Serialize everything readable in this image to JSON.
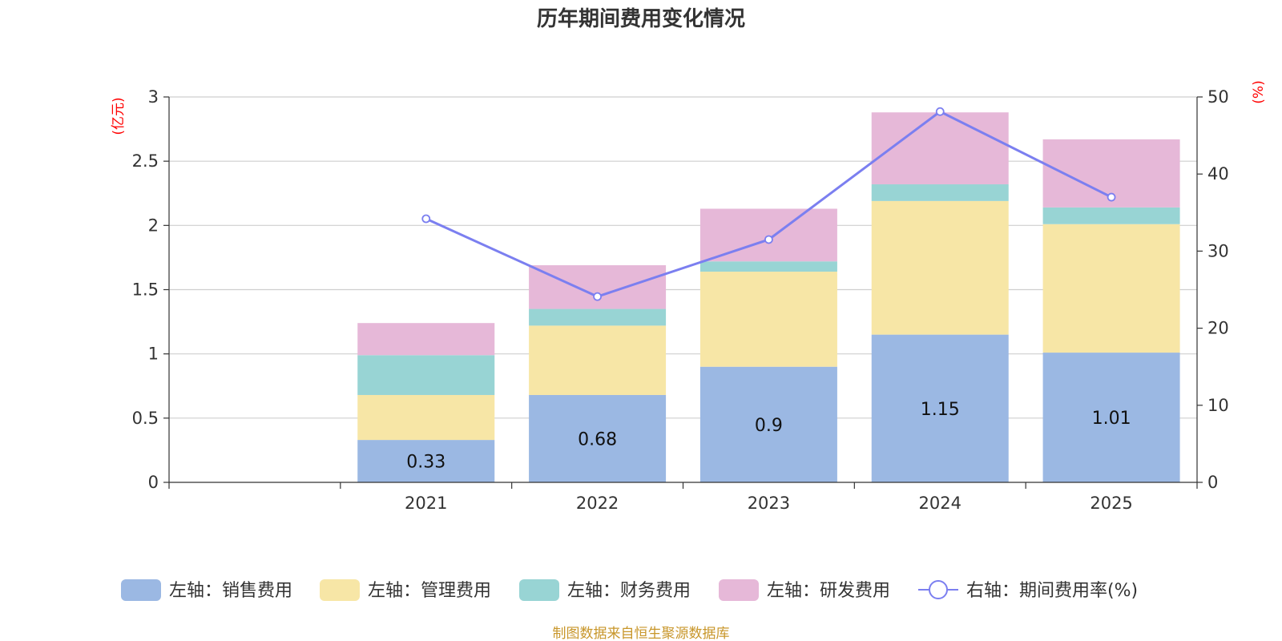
{
  "chart_data": {
    "type": "bar",
    "title": "历年期间费用变化情况",
    "categories": [
      "",
      "2021",
      "2022",
      "2023",
      "2024",
      "2025"
    ],
    "stacked": true,
    "series": [
      {
        "name": "左轴：销售费用",
        "axis": "left",
        "values": [
          null,
          0.33,
          0.68,
          0.9,
          1.15,
          1.01
        ],
        "color": "#9bb8e3",
        "show_labels": true
      },
      {
        "name": "左轴：管理费用",
        "axis": "left",
        "values": [
          null,
          0.35,
          0.54,
          0.74,
          1.04,
          1.0
        ],
        "color": "#f7e6a6"
      },
      {
        "name": "左轴：财务费用",
        "axis": "left",
        "values": [
          null,
          0.31,
          0.13,
          0.08,
          0.13,
          0.13
        ],
        "color": "#98d4d4"
      },
      {
        "name": "左轴：研发费用",
        "axis": "left",
        "values": [
          null,
          0.25,
          0.34,
          0.41,
          0.56,
          0.53
        ],
        "color": "#e6b8d8"
      }
    ],
    "line": {
      "name": "右轴：期间费用率(%)",
      "axis": "right",
      "type": "line",
      "values": [
        null,
        34.2,
        24.1,
        31.5,
        48.1,
        37.0
      ],
      "color": "#7b7ff0"
    },
    "left_axis": {
      "label": "(亿元)",
      "ylim": [
        0,
        3
      ],
      "ticks": [
        "0",
        "0.5",
        "1",
        "1.5",
        "2",
        "2.5",
        "3"
      ]
    },
    "right_axis": {
      "label": "(%)",
      "ylim": [
        0,
        50
      ],
      "ticks": [
        "0",
        "10",
        "20",
        "30",
        "40",
        "50"
      ]
    },
    "grid": true,
    "legend_position": "bottom"
  },
  "footer": {
    "source": "制图数据来自恒生聚源数据库"
  }
}
